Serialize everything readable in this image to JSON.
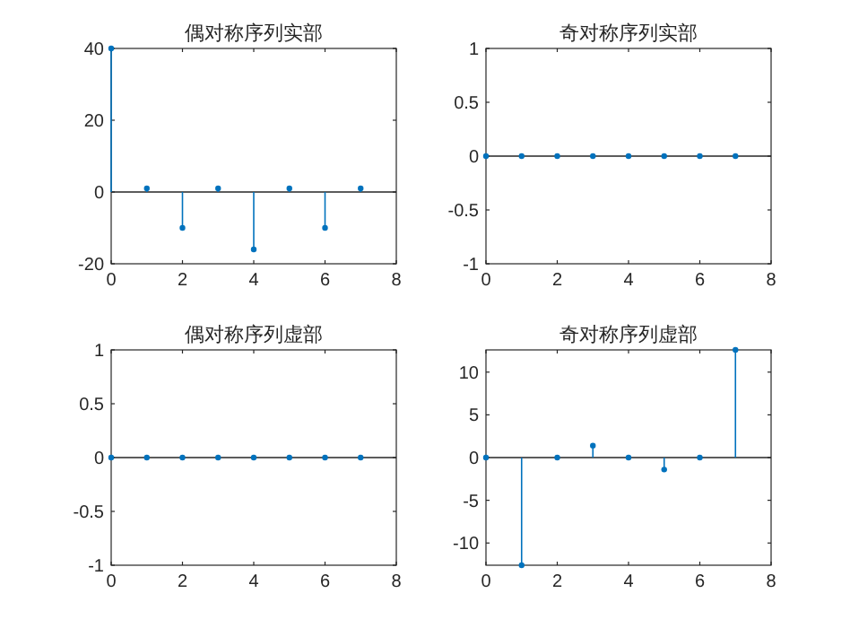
{
  "chart_data": [
    {
      "type": "lollipop",
      "title": "偶对称序列实部",
      "x": [
        0,
        1,
        2,
        3,
        4,
        5,
        6,
        7
      ],
      "values": [
        40,
        1,
        -10,
        1,
        -16,
        1,
        -10,
        1
      ],
      "color": "#0072bd",
      "marker": "circle",
      "xlim": [
        0,
        8
      ],
      "ylim": [
        -20,
        40
      ],
      "xticks": [
        0,
        2,
        4,
        6,
        8
      ],
      "yticks": [
        -20,
        0,
        20,
        40
      ],
      "ref_lines": [
        {
          "axis": "y",
          "value": 0,
          "color": "#262626"
        }
      ]
    },
    {
      "type": "lollipop",
      "title": "奇对称序列实部",
      "x": [
        0,
        1,
        2,
        3,
        4,
        5,
        6,
        7
      ],
      "values": [
        0,
        0,
        0,
        0,
        0,
        0,
        0,
        0
      ],
      "color": "#0072bd",
      "marker": "circle",
      "xlim": [
        0,
        8
      ],
      "ylim": [
        -1,
        1
      ],
      "xticks": [
        0,
        2,
        4,
        6,
        8
      ],
      "yticks": [
        -1,
        -0.5,
        0,
        0.5,
        1
      ],
      "ref_lines": [
        {
          "axis": "y",
          "value": 0,
          "color": "#262626"
        }
      ]
    },
    {
      "type": "lollipop",
      "title": "偶对称序列虚部",
      "x": [
        0,
        1,
        2,
        3,
        4,
        5,
        6,
        7
      ],
      "values": [
        0,
        0,
        0,
        0,
        0,
        0,
        0,
        0
      ],
      "color": "#0072bd",
      "marker": "circle",
      "xlim": [
        0,
        8
      ],
      "ylim": [
        -1,
        1
      ],
      "xticks": [
        0,
        2,
        4,
        6,
        8
      ],
      "yticks": [
        -1,
        -0.5,
        0,
        0.5,
        1
      ],
      "ref_lines": [
        {
          "axis": "y",
          "value": 0,
          "color": "#262626"
        }
      ]
    },
    {
      "type": "lollipop",
      "title": "奇对称序列虚部",
      "x": [
        0,
        1,
        2,
        3,
        4,
        5,
        6,
        7
      ],
      "values": [
        0,
        -12.6,
        0,
        1.4,
        0,
        -1.4,
        0,
        12.6
      ],
      "color": "#0072bd",
      "marker": "circle",
      "xlim": [
        0,
        8
      ],
      "ylim": [
        -12.6,
        12.6
      ],
      "xticks": [
        0,
        2,
        4,
        6,
        8
      ],
      "yticks": [
        -10,
        -5,
        0,
        5,
        10
      ],
      "ref_lines": [
        {
          "axis": "y",
          "value": 0,
          "color": "#262626"
        }
      ]
    }
  ]
}
